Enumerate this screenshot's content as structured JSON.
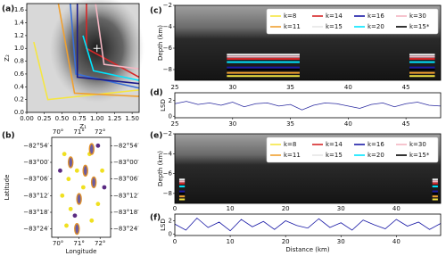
{
  "chart_data": [
    {
      "type": "line",
      "panel": "(a)",
      "xlabel": "Z₁",
      "ylabel": "Z₂",
      "xlim": [
        0,
        1.6
      ],
      "ylim": [
        0,
        1.7
      ],
      "xticks": [
        {
          "value": 0,
          "label": "0.00"
        },
        {
          "value": 0.25,
          "label": "0.25"
        },
        {
          "value": 0.5,
          "label": "0.50"
        },
        {
          "value": 0.75,
          "label": "0.75"
        },
        {
          "value": 1,
          "label": "1.00"
        },
        {
          "value": 1.25,
          "label": "1.25"
        },
        {
          "value": 1.5,
          "label": "1.50"
        }
      ],
      "yticks": [
        {
          "value": 0,
          "label": "0.0"
        },
        {
          "value": 0.2,
          "label": "0.2"
        },
        {
          "value": 0.4,
          "label": "0.4"
        },
        {
          "value": 0.6,
          "label": "0.6"
        },
        {
          "value": 0.8,
          "label": "0.8"
        },
        {
          "value": 1,
          "label": "1.0"
        },
        {
          "value": 1.2,
          "label": "1.2"
        },
        {
          "value": 1.4,
          "label": "1.4"
        },
        {
          "value": 1.6,
          "label": "1.6"
        }
      ],
      "series": [
        {
          "color": "#f5e642",
          "x": [
            0.1,
            0.3,
            1.6
          ],
          "values": [
            1.1,
            0.2,
            0.35
          ]
        },
        {
          "color": "#f0a030",
          "x": [
            0.45,
            0.68,
            1.6
          ],
          "values": [
            1.7,
            0.3,
            0.25
          ]
        },
        {
          "color": "#3a6fd8",
          "x": [
            0.62,
            0.7,
            1.6
          ],
          "values": [
            1.7,
            0.6,
            0.38
          ]
        },
        {
          "color": "#1a1a8c",
          "x": [
            0.72,
            0.72,
            1.6
          ],
          "values": [
            1.7,
            0.55,
            0.45
          ]
        },
        {
          "color": "#d62728",
          "x": [
            0.85,
            0.85,
            1.6
          ],
          "values": [
            1.7,
            1.0,
            0.55
          ]
        },
        {
          "color": "#00e5ff",
          "x": [
            0.8,
            0.95,
            1.6
          ],
          "values": [
            1.2,
            0.65,
            0.5
          ]
        },
        {
          "color": "#f4b6c2",
          "x": [
            0.98,
            1.1,
            1.6
          ],
          "values": [
            1.7,
            0.75,
            0.68
          ]
        }
      ],
      "center": [
        1.0,
        1.0
      ]
    },
    {
      "type": "scatter",
      "panel": "(b)",
      "xlabel": "Longitude",
      "ylabel": "Latitude",
      "xlim": [
        69.7,
        72.5
      ],
      "ylim": [
        -83.45,
        -82.85
      ],
      "xticks": [
        {
          "value": 70,
          "label": "70°"
        },
        {
          "value": 71,
          "label": "71°"
        },
        {
          "value": 72,
          "label": "72°"
        }
      ],
      "yticks": [
        {
          "value": -82.9,
          "label": "−82°54′"
        },
        {
          "value": -83.0,
          "label": "−83°00′"
        },
        {
          "value": -83.1,
          "label": "−83°06′"
        },
        {
          "value": -83.2,
          "label": "−83°12′"
        },
        {
          "value": -83.3,
          "label": "−83°18′"
        },
        {
          "value": -83.4,
          "label": "−83°24′"
        }
      ],
      "series": [
        {
          "color": "#f0e020",
          "shape": "dot",
          "x": [
            70.3,
            70.9,
            70.5,
            70.2,
            70.6,
            71.2,
            71.5,
            71.9,
            71.6,
            70.4,
            72.1
          ],
          "values": [
            -82.95,
            -83.05,
            -83.1,
            -83.2,
            -83.28,
            -83.15,
            -82.95,
            -83.25,
            -83.35,
            -83.38,
            -83.05
          ]
        },
        {
          "color": "#5a2a82",
          "shape": "dot",
          "x": [
            70.1,
            71.9,
            70.8,
            72.2
          ],
          "values": [
            -83.05,
            -82.9,
            -83.32,
            -83.15
          ]
        },
        {
          "color": "#6b5ba0",
          "edgecolor": "#e0902a",
          "shape": "ellipse",
          "x": [
            70.6,
            71.0,
            71.3,
            71.7,
            70.9,
            71.6
          ],
          "values": [
            -83.0,
            -83.22,
            -83.05,
            -83.12,
            -83.4,
            -82.92
          ]
        }
      ]
    },
    {
      "type": "image",
      "panel": "(c)",
      "ylabel": "Depth (km)",
      "legend": "upper right",
      "xlim": [
        25,
        48
      ],
      "ylim": [
        -9,
        -2
      ],
      "yticks": [
        {
          "value": -2,
          "label": "−2"
        },
        {
          "value": -4,
          "label": "−4"
        },
        {
          "value": -6,
          "label": "−6"
        },
        {
          "value": -8,
          "label": "−8"
        }
      ],
      "xranges": [
        [
          29.5,
          35.8
        ],
        [
          45.3,
          47.5
        ]
      ],
      "series": [
        {
          "name": "k=8",
          "color": "#f5e642",
          "values": [
            -8.6,
            -8.6
          ]
        },
        {
          "name": "k=14",
          "color": "#d62728",
          "values": [
            -7.0,
            -7.0
          ]
        },
        {
          "name": "k=16",
          "color": "#1a1aa6",
          "values": [
            -7.8,
            -7.8
          ]
        },
        {
          "name": "k=30",
          "color": "#f4b6c2",
          "values": [
            -6.8,
            -6.8
          ]
        },
        {
          "name": "k=11",
          "color": "#f0a030",
          "values": [
            -8.3,
            -8.3
          ]
        },
        {
          "name": "k=15",
          "color": "#f0f0f0",
          "values": [
            -6.6,
            -6.6
          ]
        },
        {
          "name": "k=20",
          "color": "#00e5ff",
          "values": [
            -7.3,
            -7.3
          ]
        },
        {
          "name": "k=15*",
          "color": "#000000",
          "values": [
            -8.0,
            -8.0
          ]
        }
      ]
    },
    {
      "type": "line",
      "panel": "(d)",
      "ylabel": "LSD",
      "xlim": [
        25,
        48
      ],
      "ylim": [
        -0.2,
        3.0
      ],
      "xticks": [
        25,
        30,
        35,
        40,
        45
      ],
      "yticks": [
        0,
        2
      ],
      "series": [
        {
          "color": "#2a2aa0",
          "x": [
            25,
            26,
            27,
            28,
            29,
            30,
            31,
            32,
            33,
            34,
            35,
            36,
            37,
            38,
            39,
            40,
            41,
            42,
            43,
            44,
            45,
            46,
            47,
            48
          ],
          "values": [
            1.6,
            1.9,
            1.5,
            1.7,
            1.4,
            1.8,
            1.2,
            1.6,
            1.7,
            1.3,
            1.5,
            0.8,
            1.4,
            1.7,
            1.6,
            1.3,
            1.0,
            1.5,
            1.7,
            1.2,
            1.6,
            1.8,
            1.4,
            1.3
          ]
        }
      ]
    },
    {
      "type": "image",
      "panel": "(e)",
      "ylabel": "Depth (km)",
      "legend": "upper right",
      "xlim": [
        0,
        48
      ],
      "ylim": [
        -9,
        -2
      ],
      "yticks": [
        {
          "value": -2,
          "label": "−2"
        },
        {
          "value": -4,
          "label": "−4"
        },
        {
          "value": -6,
          "label": "−6"
        },
        {
          "value": -8,
          "label": "−8"
        }
      ],
      "xranges": [
        [
          0.8,
          1.8
        ],
        [
          46.5,
          47.5
        ]
      ],
      "series": [
        {
          "name": "k=8",
          "color": "#f5e642",
          "values": [
            -8.6,
            -8.6
          ]
        },
        {
          "name": "k=14",
          "color": "#d62728",
          "values": [
            -7.0,
            -7.0
          ]
        },
        {
          "name": "k=16",
          "color": "#1a1aa6",
          "values": [
            -7.8,
            -7.8
          ]
        },
        {
          "name": "k=30",
          "color": "#f4b6c2",
          "values": [
            -6.8,
            -6.8
          ]
        },
        {
          "name": "k=11",
          "color": "#f0a030",
          "values": [
            -8.3,
            -8.3
          ]
        },
        {
          "name": "k=15",
          "color": "#f0f0f0",
          "values": [
            -6.6,
            -6.6
          ]
        },
        {
          "name": "k=20",
          "color": "#00e5ff",
          "values": [
            -7.3,
            -7.3
          ]
        },
        {
          "name": "k=15*",
          "color": "#000000",
          "values": [
            -8.0,
            -8.0
          ]
        }
      ]
    },
    {
      "type": "line",
      "panel": "(f)",
      "xlabel": "Distance (km)",
      "ylabel": "LSD",
      "xlim": [
        0,
        48
      ],
      "ylim": [
        -0.2,
        3.0
      ],
      "xticks": [
        0,
        10,
        20,
        30,
        40
      ],
      "yticks": [
        0,
        2
      ],
      "series": [
        {
          "color": "#1a1aa6",
          "x": [
            0,
            2,
            4,
            6,
            8,
            10,
            12,
            14,
            16,
            18,
            20,
            22,
            24,
            26,
            28,
            30,
            32,
            34,
            36,
            38,
            40,
            42,
            44,
            46,
            48
          ],
          "values": [
            1.5,
            0.6,
            2.4,
            1.0,
            1.8,
            0.5,
            2.2,
            1.1,
            1.9,
            0.7,
            2.0,
            1.3,
            0.9,
            2.3,
            1.0,
            1.7,
            0.6,
            2.1,
            1.4,
            0.8,
            2.2,
            1.2,
            1.8,
            0.7,
            1.6
          ]
        }
      ]
    }
  ]
}
